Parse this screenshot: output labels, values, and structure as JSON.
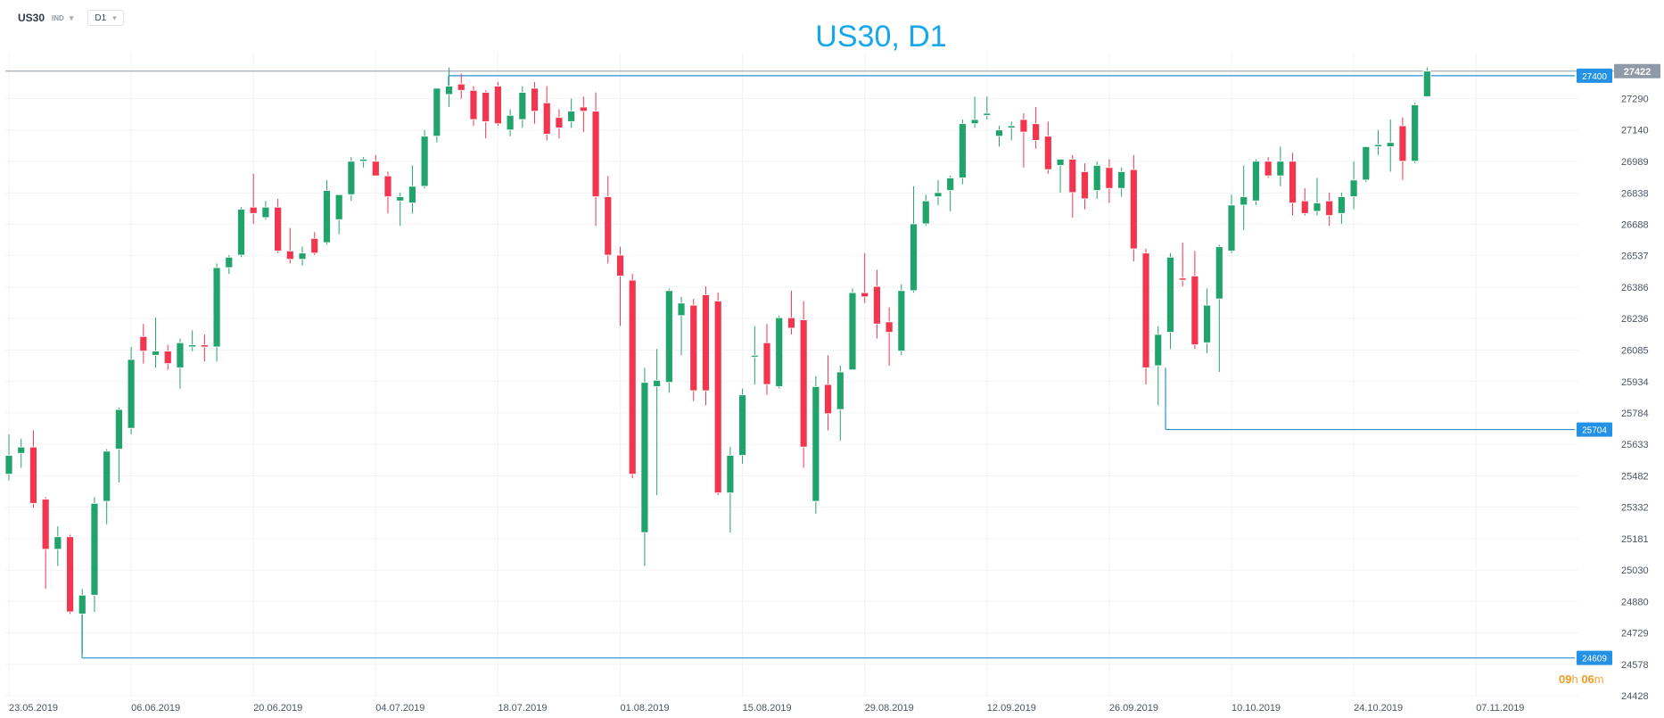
{
  "toolbar": {
    "symbol": "US30",
    "symbol_tag": "IND",
    "timeframe": "D1"
  },
  "chart_data": {
    "type": "candlestick",
    "title": "US30, D1",
    "x_ticks": [
      "23.05.2019",
      "06.06.2019",
      "20.06.2019",
      "04.07.2019",
      "18.07.2019",
      "01.08.2019",
      "15.08.2019",
      "29.08.2019",
      "12.09.2019",
      "26.09.2019",
      "10.10.2019",
      "24.10.2019",
      "07.11.2019"
    ],
    "y_ticks": [
      24428,
      24578,
      24729,
      24880,
      25030,
      25181,
      25332,
      25482,
      25633,
      25784,
      25934,
      26085,
      26236,
      26386,
      26537,
      26688,
      26838,
      26989,
      27140,
      27290
    ],
    "y_range": [
      24428,
      27515
    ],
    "last_price": 27422,
    "horizontal_levels": [
      {
        "value": 27400,
        "label": "27400"
      },
      {
        "value": 25704,
        "label": "25704"
      },
      {
        "value": 24609,
        "label": "24609"
      }
    ],
    "session_timer": {
      "hours": "09",
      "hour_unit": "h",
      "minutes": "06",
      "minute_unit": "m"
    },
    "candles": [
      {
        "date": "23.05.2019",
        "o": 25490,
        "h": 25680,
        "l": 25460,
        "c": 25580
      },
      {
        "date": "24.05.2019",
        "o": 25590,
        "h": 25660,
        "l": 25520,
        "c": 25620
      },
      {
        "date": "27.05.2019",
        "o": 25620,
        "h": 25700,
        "l": 25330,
        "c": 25350
      },
      {
        "date": "28.05.2019",
        "o": 25370,
        "h": 25380,
        "l": 24940,
        "c": 25130
      },
      {
        "date": "29.05.2019",
        "o": 25130,
        "h": 25240,
        "l": 25050,
        "c": 25190
      },
      {
        "date": "30.05.2019",
        "o": 25190,
        "h": 25200,
        "l": 24820,
        "c": 24830
      },
      {
        "date": "31.05.2019",
        "o": 24820,
        "h": 24940,
        "l": 24630,
        "c": 24910
      },
      {
        "date": "03.06.2019",
        "o": 24910,
        "h": 25380,
        "l": 24830,
        "c": 25350
      },
      {
        "date": "04.06.2019",
        "o": 25360,
        "h": 25610,
        "l": 25250,
        "c": 25600
      },
      {
        "date": "05.06.2019",
        "o": 25610,
        "h": 25810,
        "l": 25450,
        "c": 25800
      },
      {
        "date": "06.06.2019",
        "o": 25710,
        "h": 26100,
        "l": 25680,
        "c": 26040
      },
      {
        "date": "07.06.2019",
        "o": 26150,
        "h": 26210,
        "l": 26020,
        "c": 26080
      },
      {
        "date": "10.06.2019",
        "o": 26060,
        "h": 26240,
        "l": 26000,
        "c": 26080
      },
      {
        "date": "11.06.2019",
        "o": 26080,
        "h": 26110,
        "l": 25990,
        "c": 26020
      },
      {
        "date": "12.06.2019",
        "o": 26000,
        "h": 26140,
        "l": 25900,
        "c": 26120
      },
      {
        "date": "13.06.2019",
        "o": 26100,
        "h": 26180,
        "l": 26080,
        "c": 26110
      },
      {
        "date": "14.06.2019",
        "o": 26110,
        "h": 26160,
        "l": 26030,
        "c": 26100
      },
      {
        "date": "17.06.2019",
        "o": 26100,
        "h": 26500,
        "l": 26030,
        "c": 26480
      },
      {
        "date": "18.06.2019",
        "o": 26480,
        "h": 26540,
        "l": 26450,
        "c": 26530
      },
      {
        "date": "19.06.2019",
        "o": 26540,
        "h": 26770,
        "l": 26530,
        "c": 26760
      },
      {
        "date": "20.06.2019",
        "o": 26770,
        "h": 26930,
        "l": 26690,
        "c": 26740
      },
      {
        "date": "21.06.2019",
        "o": 26720,
        "h": 26800,
        "l": 26710,
        "c": 26770
      },
      {
        "date": "24.06.2019",
        "o": 26770,
        "h": 26810,
        "l": 26550,
        "c": 26560
      },
      {
        "date": "25.06.2019",
        "o": 26560,
        "h": 26670,
        "l": 26500,
        "c": 26520
      },
      {
        "date": "26.06.2019",
        "o": 26520,
        "h": 26580,
        "l": 26490,
        "c": 26550
      },
      {
        "date": "27.06.2019",
        "o": 26620,
        "h": 26650,
        "l": 26540,
        "c": 26550
      },
      {
        "date": "28.06.2019",
        "o": 26600,
        "h": 26900,
        "l": 26590,
        "c": 26850
      },
      {
        "date": "01.07.2019",
        "o": 26710,
        "h": 26830,
        "l": 26640,
        "c": 26830
      },
      {
        "date": "02.07.2019",
        "o": 26830,
        "h": 27010,
        "l": 26800,
        "c": 26990
      },
      {
        "date": "03.07.2019",
        "o": 26990,
        "h": 27010,
        "l": 26960,
        "c": 27000
      },
      {
        "date": "04.07.2019",
        "o": 26990,
        "h": 27020,
        "l": 26920,
        "c": 26920
      },
      {
        "date": "05.07.2019",
        "o": 26920,
        "h": 26940,
        "l": 26740,
        "c": 26820
      },
      {
        "date": "08.07.2019",
        "o": 26800,
        "h": 26840,
        "l": 26680,
        "c": 26820
      },
      {
        "date": "09.07.2019",
        "o": 26790,
        "h": 26970,
        "l": 26740,
        "c": 26870
      },
      {
        "date": "10.07.2019",
        "o": 26870,
        "h": 27140,
        "l": 26860,
        "c": 27110
      },
      {
        "date": "11.07.2019",
        "o": 27110,
        "h": 27340,
        "l": 27080,
        "c": 27340
      },
      {
        "date": "12.07.2019",
        "o": 27310,
        "h": 27440,
        "l": 27250,
        "c": 27350
      },
      {
        "date": "15.07.2019",
        "o": 27360,
        "h": 27410,
        "l": 27290,
        "c": 27330
      },
      {
        "date": "16.07.2019",
        "o": 27330,
        "h": 27350,
        "l": 27160,
        "c": 27190
      },
      {
        "date": "17.07.2019",
        "o": 27320,
        "h": 27330,
        "l": 27100,
        "c": 27180
      },
      {
        "date": "18.07.2019",
        "o": 27350,
        "h": 27370,
        "l": 27160,
        "c": 27170
      },
      {
        "date": "19.07.2019",
        "o": 27140,
        "h": 27240,
        "l": 27110,
        "c": 27210
      },
      {
        "date": "22.07.2019",
        "o": 27190,
        "h": 27350,
        "l": 27150,
        "c": 27320
      },
      {
        "date": "23.07.2019",
        "o": 27340,
        "h": 27370,
        "l": 27170,
        "c": 27230
      },
      {
        "date": "24.07.2019",
        "o": 27270,
        "h": 27350,
        "l": 27090,
        "c": 27120
      },
      {
        "date": "25.07.2019",
        "o": 27200,
        "h": 27240,
        "l": 27100,
        "c": 27150
      },
      {
        "date": "26.07.2019",
        "o": 27180,
        "h": 27290,
        "l": 27150,
        "c": 27230
      },
      {
        "date": "29.07.2019",
        "o": 27250,
        "h": 27300,
        "l": 27130,
        "c": 27230
      },
      {
        "date": "30.07.2019",
        "o": 27230,
        "h": 27320,
        "l": 26680,
        "c": 26820
      },
      {
        "date": "31.07.2019",
        "o": 26820,
        "h": 26920,
        "l": 26500,
        "c": 26540
      },
      {
        "date": "01.08.2019",
        "o": 26540,
        "h": 26580,
        "l": 26200,
        "c": 26440
      },
      {
        "date": "02.08.2019",
        "o": 26420,
        "h": 26450,
        "l": 25470,
        "c": 25490
      },
      {
        "date": "05.08.2019",
        "o": 25210,
        "h": 26000,
        "l": 25050,
        "c": 25930
      },
      {
        "date": "06.08.2019",
        "o": 25910,
        "h": 26090,
        "l": 25390,
        "c": 25940
      },
      {
        "date": "07.08.2019",
        "o": 25930,
        "h": 26380,
        "l": 25880,
        "c": 26370
      },
      {
        "date": "08.08.2019",
        "o": 26250,
        "h": 26340,
        "l": 26060,
        "c": 26310
      },
      {
        "date": "09.08.2019",
        "o": 26300,
        "h": 26330,
        "l": 25840,
        "c": 25890
      },
      {
        "date": "12.08.2019",
        "o": 26350,
        "h": 26390,
        "l": 25820,
        "c": 25890
      },
      {
        "date": "13.08.2019",
        "o": 26320,
        "h": 26360,
        "l": 25390,
        "c": 25400
      },
      {
        "date": "14.08.2019",
        "o": 25400,
        "h": 25620,
        "l": 25210,
        "c": 25580
      },
      {
        "date": "15.08.2019",
        "o": 25580,
        "h": 25900,
        "l": 25540,
        "c": 25870
      },
      {
        "date": "16.08.2019",
        "o": 26060,
        "h": 26200,
        "l": 25920,
        "c": 26060
      },
      {
        "date": "19.08.2019",
        "o": 26120,
        "h": 26210,
        "l": 25870,
        "c": 25920
      },
      {
        "date": "20.08.2019",
        "o": 25910,
        "h": 26250,
        "l": 25900,
        "c": 26240
      },
      {
        "date": "21.08.2019",
        "o": 26240,
        "h": 26370,
        "l": 26160,
        "c": 26190
      },
      {
        "date": "22.08.2019",
        "o": 26230,
        "h": 26320,
        "l": 25520,
        "c": 25620
      },
      {
        "date": "23.08.2019",
        "o": 25360,
        "h": 25960,
        "l": 25300,
        "c": 25910
      },
      {
        "date": "26.08.2019",
        "o": 25920,
        "h": 26060,
        "l": 25700,
        "c": 25780
      },
      {
        "date": "27.08.2019",
        "o": 25800,
        "h": 26010,
        "l": 25650,
        "c": 25980
      },
      {
        "date": "28.08.2019",
        "o": 25990,
        "h": 26380,
        "l": 25990,
        "c": 26360
      },
      {
        "date": "29.08.2019",
        "o": 26360,
        "h": 26550,
        "l": 26310,
        "c": 26340
      },
      {
        "date": "30.08.2019",
        "o": 26390,
        "h": 26470,
        "l": 26140,
        "c": 26210
      },
      {
        "date": "02.09.2019",
        "o": 26220,
        "h": 26290,
        "l": 26010,
        "c": 26170
      },
      {
        "date": "03.09.2019",
        "o": 26080,
        "h": 26400,
        "l": 26060,
        "c": 26370
      },
      {
        "date": "04.09.2019",
        "o": 26370,
        "h": 26870,
        "l": 26360,
        "c": 26690
      },
      {
        "date": "05.09.2019",
        "o": 26690,
        "h": 26830,
        "l": 26680,
        "c": 26800
      },
      {
        "date": "06.09.2019",
        "o": 26820,
        "h": 26900,
        "l": 26780,
        "c": 26840
      },
      {
        "date": "09.09.2019",
        "o": 26850,
        "h": 26920,
        "l": 26750,
        "c": 26910
      },
      {
        "date": "10.09.2019",
        "o": 26910,
        "h": 27190,
        "l": 26880,
        "c": 27170
      },
      {
        "date": "11.09.2019",
        "o": 27170,
        "h": 27300,
        "l": 27150,
        "c": 27190
      },
      {
        "date": "12.09.2019",
        "o": 27210,
        "h": 27300,
        "l": 27190,
        "c": 27220
      },
      {
        "date": "13.09.2019",
        "o": 27110,
        "h": 27160,
        "l": 27060,
        "c": 27140
      },
      {
        "date": "16.09.2019",
        "o": 27150,
        "h": 27180,
        "l": 27090,
        "c": 27160
      },
      {
        "date": "17.09.2019",
        "o": 27190,
        "h": 27220,
        "l": 26960,
        "c": 27130
      },
      {
        "date": "18.09.2019",
        "o": 27170,
        "h": 27250,
        "l": 27050,
        "c": 27090
      },
      {
        "date": "19.09.2019",
        "o": 27110,
        "h": 27180,
        "l": 26930,
        "c": 26950
      },
      {
        "date": "20.09.2019",
        "o": 26970,
        "h": 27000,
        "l": 26840,
        "c": 27000
      },
      {
        "date": "23.09.2019",
        "o": 27000,
        "h": 27020,
        "l": 26720,
        "c": 26840
      },
      {
        "date": "24.09.2019",
        "o": 26940,
        "h": 26980,
        "l": 26760,
        "c": 26810
      },
      {
        "date": "25.09.2019",
        "o": 26850,
        "h": 26990,
        "l": 26810,
        "c": 26970
      },
      {
        "date": "26.09.2019",
        "o": 26960,
        "h": 27000,
        "l": 26790,
        "c": 26860
      },
      {
        "date": "27.09.2019",
        "o": 26860,
        "h": 26960,
        "l": 26820,
        "c": 26940
      },
      {
        "date": "30.09.2019",
        "o": 26950,
        "h": 27020,
        "l": 26510,
        "c": 26570
      },
      {
        "date": "01.10.2019",
        "o": 26550,
        "h": 26570,
        "l": 25920,
        "c": 26000
      },
      {
        "date": "02.10.2019",
        "o": 26010,
        "h": 26200,
        "l": 25820,
        "c": 26160
      },
      {
        "date": "03.10.2019",
        "o": 26170,
        "h": 26550,
        "l": 26090,
        "c": 26530
      },
      {
        "date": "04.10.2019",
        "o": 26430,
        "h": 26600,
        "l": 26390,
        "c": 26420
      },
      {
        "date": "07.10.2019",
        "o": 26440,
        "h": 26560,
        "l": 26090,
        "c": 26110
      },
      {
        "date": "08.10.2019",
        "o": 26120,
        "h": 26380,
        "l": 26070,
        "c": 26300
      },
      {
        "date": "09.10.2019",
        "o": 26330,
        "h": 26590,
        "l": 25980,
        "c": 26580
      },
      {
        "date": "10.10.2019",
        "o": 26560,
        "h": 26830,
        "l": 26550,
        "c": 26780
      },
      {
        "date": "11.10.2019",
        "o": 26780,
        "h": 26970,
        "l": 26660,
        "c": 26820
      },
      {
        "date": "14.10.2019",
        "o": 26800,
        "h": 27000,
        "l": 26780,
        "c": 26990
      },
      {
        "date": "15.10.2019",
        "o": 26990,
        "h": 27010,
        "l": 26910,
        "c": 26920
      },
      {
        "date": "16.10.2019",
        "o": 26920,
        "h": 27060,
        "l": 26870,
        "c": 26990
      },
      {
        "date": "17.10.2019",
        "o": 26990,
        "h": 27030,
        "l": 26730,
        "c": 26790
      },
      {
        "date": "18.10.2019",
        "o": 26800,
        "h": 26860,
        "l": 26730,
        "c": 26740
      },
      {
        "date": "21.10.2019",
        "o": 26750,
        "h": 26910,
        "l": 26730,
        "c": 26790
      },
      {
        "date": "22.10.2019",
        "o": 26800,
        "h": 26840,
        "l": 26680,
        "c": 26730
      },
      {
        "date": "23.10.2019",
        "o": 26740,
        "h": 26840,
        "l": 26690,
        "c": 26820
      },
      {
        "date": "24.10.2019",
        "o": 26820,
        "h": 26990,
        "l": 26760,
        "c": 26900
      },
      {
        "date": "25.10.2019",
        "o": 26900,
        "h": 27060,
        "l": 26890,
        "c": 27060
      },
      {
        "date": "28.10.2019",
        "o": 27060,
        "h": 27140,
        "l": 27020,
        "c": 27070
      },
      {
        "date": "29.10.2019",
        "o": 27060,
        "h": 27190,
        "l": 26940,
        "c": 27080
      },
      {
        "date": "30.10.2019",
        "o": 27160,
        "h": 27200,
        "l": 26900,
        "c": 26990
      },
      {
        "date": "31.10.2019",
        "o": 26990,
        "h": 27270,
        "l": 26980,
        "c": 27260
      },
      {
        "date": "01.11.2019",
        "o": 27300,
        "h": 27440,
        "l": 27300,
        "c": 27422
      }
    ]
  }
}
